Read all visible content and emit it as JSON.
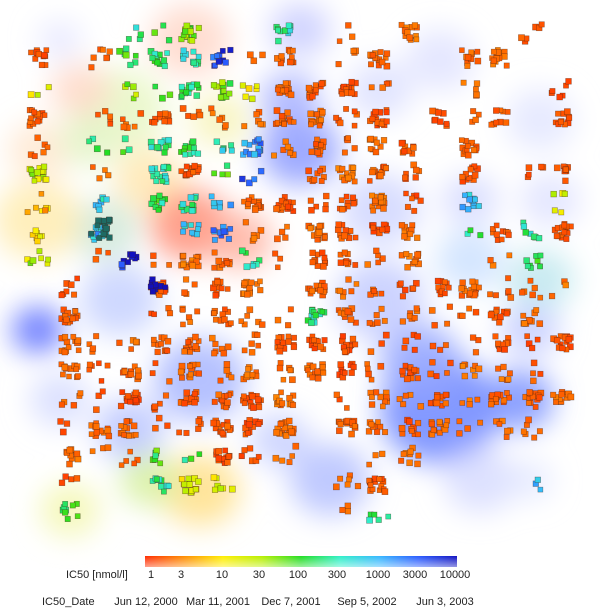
{
  "chart_data": {
    "type": "scatter",
    "description_kind": "density map of compound clusters",
    "color_legend": {
      "title": "IC50 [nmol/l]",
      "ticks": [
        "1",
        "3",
        "10",
        "30",
        "100",
        "300",
        "1000",
        "3000",
        "10000"
      ],
      "gradient_colors": [
        "#ff2a00",
        "#ff8c00",
        "#ffee00",
        "#b7ef00",
        "#22dd22",
        "#2ff0c8",
        "#35b8ff",
        "#2a5cff",
        "#1212c0"
      ]
    },
    "date_legend": {
      "title": "IC50_Date",
      "ticks": [
        "Jun 12, 2000",
        "Mar 11, 2001",
        "Dec 7, 2001",
        "Sep 5, 2002",
        "Jun 3, 2003"
      ]
    },
    "grid": false
  }
}
